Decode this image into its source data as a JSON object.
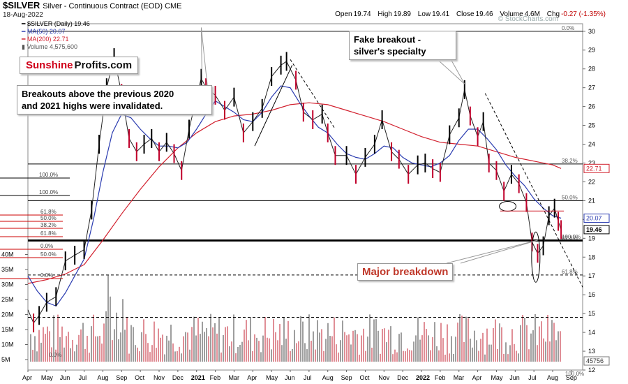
{
  "header": {
    "symbol": "$SILVER",
    "description": "Silver - Continuous Contract (EOD)",
    "exchange": "CME",
    "date": "18-Aug-2022",
    "open_label": "Open",
    "open": "19.74",
    "high_label": "High",
    "high": "19.89",
    "low_label": "Low",
    "low": "19.41",
    "close_label": "Close",
    "close": "19.46",
    "volume_label": "Volume",
    "volume": "4.6M",
    "chg_label": "Chg",
    "chg": "-0.27 (-1.35%)",
    "watermark": "© StockCharts.com"
  },
  "legend": {
    "price": "$SILVER (Daily) 19.46",
    "ma50": "MA(50) 20.07",
    "ma200": "MA(200) 22.71",
    "volume": "Volume 4,575,600"
  },
  "annotations": {
    "logo_a": "Sunshine",
    "logo_b": "Profits.com",
    "breakouts_line1": "Breakouts above the previous 2020",
    "breakouts_line2": "and 2021 highs were invalidated.",
    "fake_line1": "Fake breakout -",
    "fake_line2": "silver's specialty",
    "major": "Major breakdown"
  },
  "colors": {
    "up_candle": "#000000",
    "down_candle": "#c0002a",
    "ma50": "#2a3bb0",
    "ma200": "#d2202e",
    "volume_up": "#9e9e9e",
    "volume_down": "#e08e96"
  },
  "chart_data": {
    "type": "line",
    "title": "$SILVER Silver - Continuous Contract (EOD)",
    "ylim": [
      12,
      30.4
    ],
    "y_ticks": [
      12,
      13,
      14,
      15,
      16,
      17,
      18,
      19,
      20,
      21,
      22,
      23,
      24,
      25,
      26,
      27,
      28,
      29,
      30
    ],
    "volume_ticks": [
      "5M",
      "10M",
      "15M",
      "20M",
      "25M",
      "30M",
      "35M",
      "40M"
    ],
    "x_tick_labels": [
      "Apr",
      "May",
      "Jun",
      "Jul",
      "Aug",
      "Sep",
      "Oct",
      "Nov",
      "Dec",
      "2021",
      "Feb",
      "Mar",
      "Apr",
      "May",
      "Jun",
      "Jul",
      "Aug",
      "Sep",
      "Oct",
      "Nov",
      "Dec",
      "2022",
      "Feb",
      "Mar",
      "Apr",
      "May",
      "Jun",
      "Jul",
      "Aug",
      "Sep"
    ],
    "x_tick_positions": [
      0,
      1,
      2,
      3,
      4,
      5,
      6,
      7,
      8,
      9,
      10,
      11,
      12,
      13,
      14,
      15,
      16,
      17,
      18,
      19,
      20,
      21,
      22,
      23,
      24,
      25,
      26,
      27,
      28,
      29
    ],
    "price_path": [
      [
        0,
        15.2
      ],
      [
        0.3,
        14.5
      ],
      [
        0.6,
        14.9
      ],
      [
        1.0,
        15.6
      ],
      [
        1.5,
        15.9
      ],
      [
        2.0,
        17.8
      ],
      [
        2.5,
        18.1
      ],
      [
        3.0,
        18.4
      ],
      [
        3.4,
        20.5
      ],
      [
        3.8,
        24.0
      ],
      [
        4.2,
        27.0
      ],
      [
        4.6,
        28.6
      ],
      [
        5.0,
        26.7
      ],
      [
        5.4,
        24.3
      ],
      [
        5.8,
        23.6
      ],
      [
        6.2,
        24.0
      ],
      [
        6.6,
        24.3
      ],
      [
        7.0,
        23.6
      ],
      [
        7.4,
        24.1
      ],
      [
        7.8,
        23.5
      ],
      [
        8.2,
        22.6
      ],
      [
        8.6,
        24.8
      ],
      [
        9.0,
        26.5
      ],
      [
        9.25,
        27.5
      ],
      [
        9.5,
        27.0
      ],
      [
        10.0,
        26.6
      ],
      [
        10.5,
        25.8
      ],
      [
        11.0,
        26.5
      ],
      [
        11.5,
        24.6
      ],
      [
        12.0,
        25.2
      ],
      [
        12.5,
        25.9
      ],
      [
        13.0,
        27.6
      ],
      [
        13.5,
        28.2
      ],
      [
        13.8,
        28.4
      ],
      [
        14.3,
        27.4
      ],
      [
        14.7,
        25.7
      ],
      [
        15.2,
        25.3
      ],
      [
        15.7,
        25.6
      ],
      [
        16.0,
        24.6
      ],
      [
        16.4,
        23.4
      ],
      [
        17.0,
        23.4
      ],
      [
        17.5,
        22.4
      ],
      [
        18.0,
        23.3
      ],
      [
        18.5,
        24.0
      ],
      [
        18.9,
        25.3
      ],
      [
        19.4,
        23.6
      ],
      [
        19.8,
        23.2
      ],
      [
        20.3,
        22.4
      ],
      [
        20.8,
        22.9
      ],
      [
        21.2,
        23.0
      ],
      [
        21.6,
        22.7
      ],
      [
        22.0,
        22.5
      ],
      [
        22.5,
        24.5
      ],
      [
        23.0,
        25.4
      ],
      [
        23.3,
        26.9
      ],
      [
        23.6,
        25.5
      ],
      [
        24.0,
        24.4
      ],
      [
        24.3,
        25.2
      ],
      [
        24.6,
        23.0
      ],
      [
        25.0,
        22.6
      ],
      [
        25.4,
        21.5
      ],
      [
        25.8,
        22.4
      ],
      [
        26.2,
        21.9
      ],
      [
        26.6,
        20.9
      ],
      [
        26.9,
        18.8
      ],
      [
        27.2,
        18.2
      ],
      [
        27.5,
        18.6
      ],
      [
        27.8,
        20.2
      ],
      [
        28.1,
        20.6
      ],
      [
        28.3,
        19.9
      ],
      [
        28.45,
        19.46
      ]
    ],
    "ma50_path": [
      [
        0,
        17.0
      ],
      [
        0.5,
        16.2
      ],
      [
        1.0,
        15.6
      ],
      [
        1.5,
        15.4
      ],
      [
        2.0,
        16.1
      ],
      [
        2.5,
        17.0
      ],
      [
        3.0,
        17.9
      ],
      [
        3.5,
        20.0
      ],
      [
        4.0,
        22.5
      ],
      [
        4.5,
        24.6
      ],
      [
        5.0,
        25.6
      ],
      [
        5.5,
        25.4
      ],
      [
        6.0,
        24.8
      ],
      [
        6.5,
        24.3
      ],
      [
        7.0,
        23.9
      ],
      [
        7.5,
        23.9
      ],
      [
        8.0,
        23.8
      ],
      [
        8.5,
        24.1
      ],
      [
        9.0,
        24.8
      ],
      [
        9.5,
        25.6
      ],
      [
        10.0,
        26.3
      ],
      [
        10.5,
        26.0
      ],
      [
        11.0,
        25.7
      ],
      [
        11.5,
        25.3
      ],
      [
        12.0,
        25.2
      ],
      [
        12.5,
        25.7
      ],
      [
        13.0,
        26.5
      ],
      [
        13.5,
        27.1
      ],
      [
        14.0,
        27.0
      ],
      [
        14.5,
        26.2
      ],
      [
        15.0,
        25.5
      ],
      [
        15.5,
        24.9
      ],
      [
        16.0,
        24.6
      ],
      [
        16.5,
        24.0
      ],
      [
        17.0,
        23.5
      ],
      [
        17.5,
        23.3
      ],
      [
        18.0,
        23.2
      ],
      [
        18.5,
        23.5
      ],
      [
        19.0,
        23.9
      ],
      [
        19.5,
        23.8
      ],
      [
        20.0,
        23.3
      ],
      [
        20.5,
        23.0
      ],
      [
        21.0,
        22.9
      ],
      [
        21.5,
        22.8
      ],
      [
        22.0,
        23.0
      ],
      [
        22.5,
        23.4
      ],
      [
        23.0,
        24.2
      ],
      [
        23.5,
        24.8
      ],
      [
        24.0,
        24.8
      ],
      [
        24.5,
        24.3
      ],
      [
        25.0,
        23.7
      ],
      [
        25.5,
        22.9
      ],
      [
        26.0,
        22.3
      ],
      [
        26.5,
        21.8
      ],
      [
        27.0,
        21.1
      ],
      [
        27.5,
        20.6
      ],
      [
        28.0,
        20.2
      ],
      [
        28.45,
        20.07
      ]
    ],
    "ma200_path": [
      [
        0,
        16.6
      ],
      [
        1.0,
        16.8
      ],
      [
        2.0,
        17.1
      ],
      [
        3.0,
        17.6
      ],
      [
        4.0,
        18.9
      ],
      [
        5.0,
        20.3
      ],
      [
        6.0,
        21.6
      ],
      [
        7.0,
        22.8
      ],
      [
        8.0,
        23.8
      ],
      [
        9.0,
        24.6
      ],
      [
        10.0,
        25.2
      ],
      [
        11.0,
        25.5
      ],
      [
        12.0,
        25.6
      ],
      [
        13.0,
        25.8
      ],
      [
        14.0,
        26.1
      ],
      [
        15.0,
        26.2
      ],
      [
        16.0,
        26.1
      ],
      [
        17.0,
        25.8
      ],
      [
        18.0,
        25.5
      ],
      [
        19.0,
        25.2
      ],
      [
        20.0,
        24.8
      ],
      [
        21.0,
        24.4
      ],
      [
        22.0,
        24.1
      ],
      [
        23.0,
        24.0
      ],
      [
        24.0,
        23.9
      ],
      [
        25.0,
        23.6
      ],
      [
        26.0,
        23.3
      ],
      [
        27.0,
        23.1
      ],
      [
        28.0,
        22.9
      ],
      [
        28.45,
        22.71
      ]
    ],
    "horizontal_levels": [
      {
        "value": 30.0,
        "label": "0.0%"
      },
      {
        "value": 22.95,
        "label": "38.2%"
      },
      {
        "value": 21.0,
        "label": "50.0%"
      },
      {
        "value": 18.85,
        "label": "61.8%"
      },
      {
        "value": 18.9,
        "label": "100.0%"
      },
      {
        "value": 17.05,
        "label": "61.8%"
      },
      {
        "value": 14.8,
        "label": ""
      }
    ],
    "fib_left_labels": [
      "100.0%",
      "100.0%",
      "61.8%",
      "50.0%",
      "38.2%",
      "61.8%",
      "0.0%",
      "50.0%",
      "0.0%"
    ],
    "right_labels": {
      "ma200": "22.71",
      "ma50": "20.07",
      "close": "19.46",
      "volume": "45756",
      "pct_bottom": "100.0%"
    },
    "volume_note": "0.0%"
  }
}
